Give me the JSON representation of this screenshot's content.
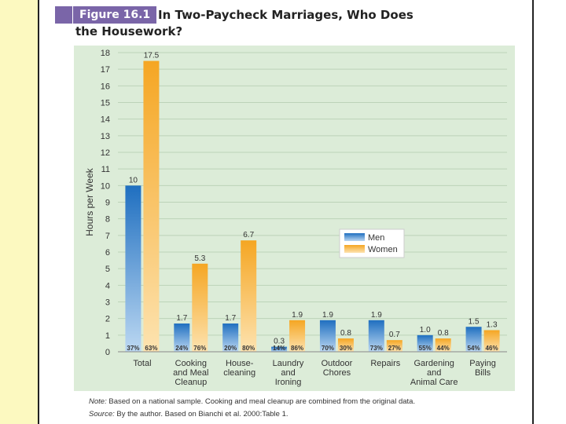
{
  "figure": {
    "label": "Figure 16.1",
    "title_line1": "In Two-Paycheck Marriages, Who Does",
    "title_line2": "the Housework?"
  },
  "colors": {
    "men": "#1f6fc0",
    "women": "#f5a623",
    "panel": "#dcecd8",
    "tag": "#7a65a8"
  },
  "chart_data": {
    "type": "bar",
    "title": "In Two-Paycheck Marriages, Who Does the Housework?",
    "xlabel": "",
    "ylabel": "Hours per Week",
    "ylim": [
      0,
      18
    ],
    "yticks": [
      0,
      1,
      2,
      3,
      4,
      5,
      6,
      7,
      8,
      9,
      10,
      11,
      12,
      13,
      14,
      15,
      16,
      17,
      18
    ],
    "grid": true,
    "legend_position": "center-right",
    "categories": [
      [
        "Total"
      ],
      [
        "Cooking",
        "and Meal",
        "Cleanup"
      ],
      [
        "House-",
        "cleaning"
      ],
      [
        "Laundry",
        "and",
        "Ironing"
      ],
      [
        "Outdoor",
        "Chores"
      ],
      [
        "Repairs"
      ],
      [
        "Gardening",
        "and",
        "Animal Care"
      ],
      [
        "Paying",
        "Bills"
      ]
    ],
    "series": [
      {
        "name": "Men",
        "values": [
          10,
          1.7,
          1.7,
          0.3,
          1.9,
          1.9,
          1.0,
          1.5
        ],
        "value_labels": [
          "10",
          "1.7",
          "1.7",
          "0.3",
          "1.9",
          "1.9",
          "1.0",
          "1.5"
        ],
        "shares": [
          "37%",
          "24%",
          "20%",
          "14%",
          "70%",
          "73%",
          "55%",
          "54%"
        ]
      },
      {
        "name": "Women",
        "values": [
          17.5,
          5.3,
          6.7,
          1.9,
          0.8,
          0.7,
          0.8,
          1.3
        ],
        "value_labels": [
          "17.5",
          "5.3",
          "6.7",
          "1.9",
          "0.8",
          "0.7",
          "0.8",
          "1.3"
        ],
        "shares": [
          "63%",
          "76%",
          "80%",
          "86%",
          "30%",
          "27%",
          "44%",
          "46%"
        ]
      }
    ]
  },
  "notes": {
    "note_label": "Note:",
    "note_text": " Based on a national sample. Cooking and meal cleanup are combined from the original data.",
    "source_label": "Source:",
    "source_text": " By the author. Based on Bianchi et al. 2000:Table 1."
  }
}
